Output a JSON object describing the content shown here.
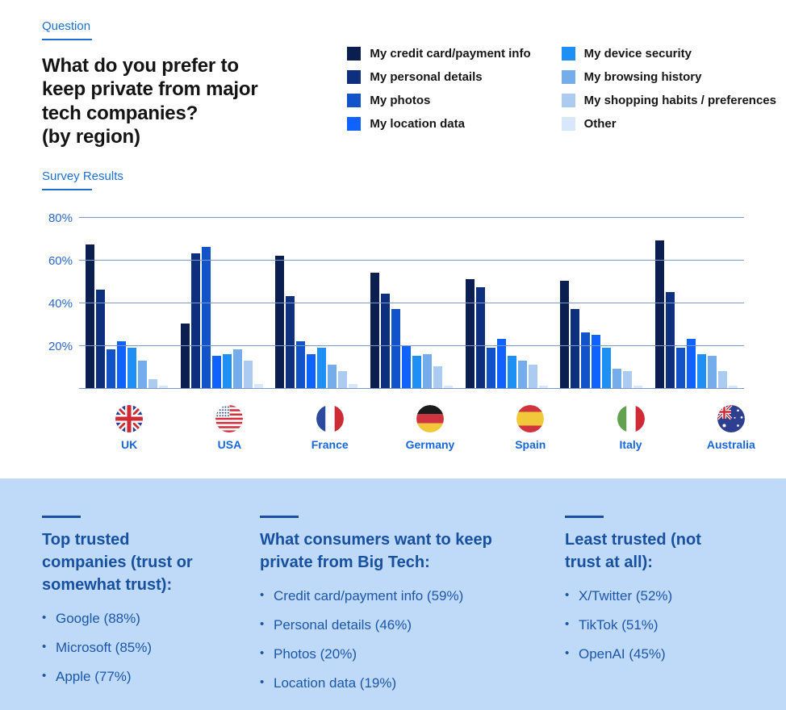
{
  "header": {
    "eyebrow": "Question",
    "title": "What do you prefer to\nkeep private from major\ntech companies?\n(by region)"
  },
  "chart_data": {
    "type": "bar",
    "title": "Survey Results",
    "grouped": true,
    "grid": true,
    "legend_position": "top-right",
    "ylim": [
      0,
      80
    ],
    "yticks": [
      20,
      40,
      60,
      80
    ],
    "ytick_labels": [
      "20%",
      "40%",
      "60%",
      "80%"
    ],
    "categories": [
      "UK",
      "USA",
      "France",
      "Germany",
      "Spain",
      "Italy",
      "Australia"
    ],
    "series": [
      {
        "name": "My credit card/payment info",
        "color": "#0A1E4F",
        "values": [
          67,
          30,
          62,
          54,
          51,
          50,
          69
        ]
      },
      {
        "name": "My personal details",
        "color": "#0E2E7E",
        "values": [
          46,
          63,
          43,
          44,
          47,
          37,
          45
        ]
      },
      {
        "name": "My photos",
        "color": "#1353C9",
        "values": [
          18,
          66,
          22,
          37,
          19,
          26,
          19
        ]
      },
      {
        "name": "My location data",
        "color": "#0F62FE",
        "values": [
          22,
          15,
          16,
          20,
          23,
          25,
          23
        ]
      },
      {
        "name": "My device security",
        "color": "#1E90F5",
        "values": [
          19,
          16,
          19,
          15,
          15,
          19,
          16
        ]
      },
      {
        "name": "My browsing history",
        "color": "#74ACEC",
        "values": [
          13,
          18,
          11,
          16,
          13,
          9,
          15
        ]
      },
      {
        "name": "My shopping habits / preferences",
        "color": "#ABCBF1",
        "values": [
          4,
          13,
          8,
          10,
          11,
          8,
          8
        ]
      },
      {
        "name": "Other",
        "color": "#D8E7FA",
        "values": [
          1,
          2,
          2,
          1,
          1,
          1,
          1
        ]
      }
    ]
  },
  "flags": [
    {
      "country": "UK"
    },
    {
      "country": "USA"
    },
    {
      "country": "France"
    },
    {
      "country": "Germany"
    },
    {
      "country": "Spain"
    },
    {
      "country": "Italy"
    },
    {
      "country": "Australia"
    }
  ],
  "panels": [
    {
      "title": "Top trusted companies (trust or somewhat trust):",
      "items": [
        "Google (88%)",
        "Microsoft (85%)",
        "Apple (77%)"
      ]
    },
    {
      "title": "What consumers want to keep private from Big Tech:",
      "items": [
        "Credit card/payment info (59%)",
        "Personal details (46%)",
        "Photos (20%)",
        "Location data (19%)"
      ]
    },
    {
      "title": "Least trusted (not trust at all):",
      "items": [
        "X/Twitter (52%)",
        "TikTok (51%)",
        "OpenAI (45%)"
      ]
    }
  ],
  "theme": {
    "accent_blue": "#1D6FD6",
    "panel_background": "#BFD9F8",
    "gridline_color": "#7E99C8",
    "axis_label_color": "#2A67C8",
    "country_label_color": "#1766DB",
    "panel_text_color": "#17509F"
  }
}
